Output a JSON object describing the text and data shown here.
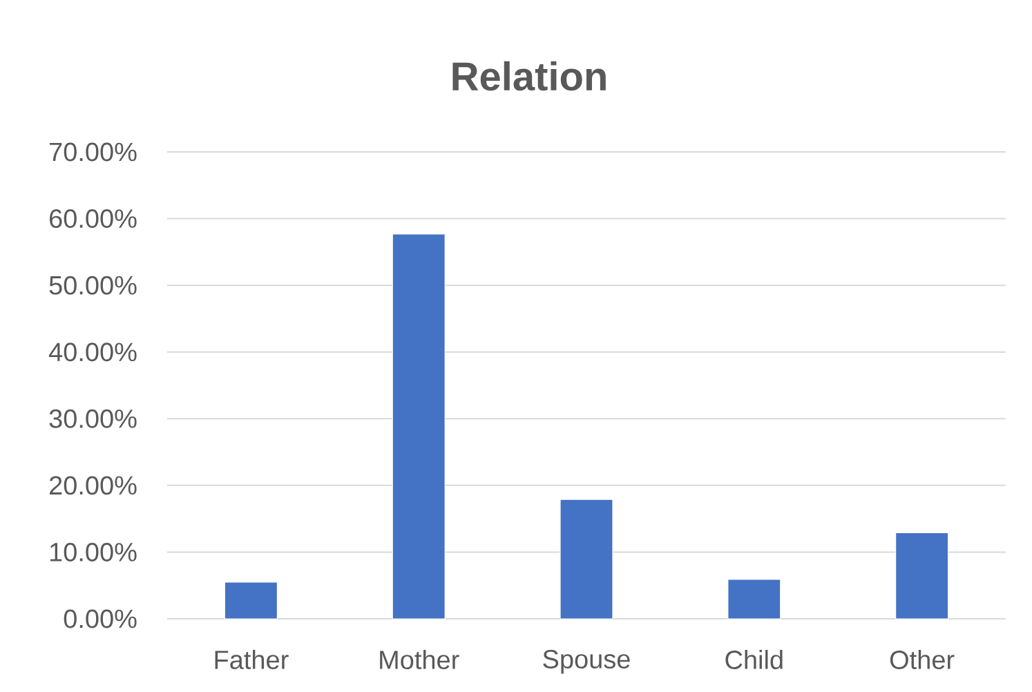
{
  "chart_data": {
    "type": "bar",
    "title": "Relation",
    "categories": [
      "Father",
      "Mother",
      "Spouse",
      "Child",
      "Other"
    ],
    "values": [
      5.5,
      57.7,
      17.9,
      5.9,
      12.9
    ],
    "color": "#4472c4",
    "ylim": [
      0,
      70
    ],
    "yticks": [
      {
        "value": 0,
        "label": "0.00%"
      },
      {
        "value": 10,
        "label": "10.00%"
      },
      {
        "value": 20,
        "label": "20.00%"
      },
      {
        "value": 30,
        "label": "30.00%"
      },
      {
        "value": 40,
        "label": "40.00%"
      },
      {
        "value": 50,
        "label": "50.00%"
      },
      {
        "value": 60,
        "label": "60.00%"
      },
      {
        "value": 70,
        "label": "70.00%"
      }
    ],
    "grid": "y"
  }
}
